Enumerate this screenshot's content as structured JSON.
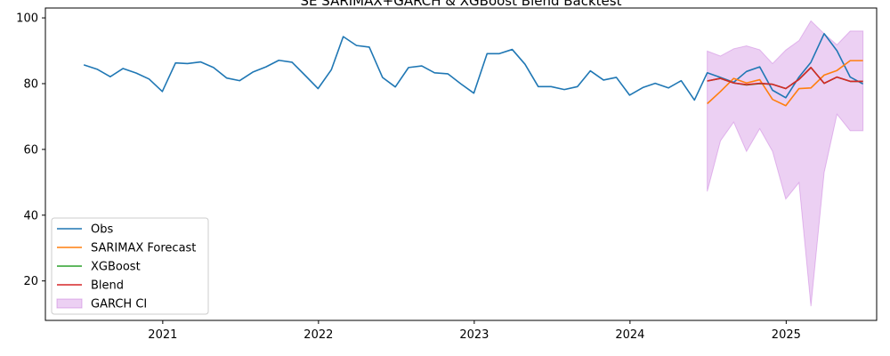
{
  "chart_data": {
    "type": "line",
    "title": "SE SARIMAX+GARCH & XGBoost Blend Backtest",
    "xlabel": "",
    "ylabel": "",
    "xlim": [
      "2020-04-01",
      "2025-08-01"
    ],
    "ylim": [
      8,
      103
    ],
    "grid": false,
    "legend_position": "lower-left",
    "x_ticks": [
      {
        "date": "2021-01-01",
        "label": "2021"
      },
      {
        "date": "2022-01-01",
        "label": "2022"
      },
      {
        "date": "2023-01-01",
        "label": "2023"
      },
      {
        "date": "2024-01-01",
        "label": "2024"
      },
      {
        "date": "2025-01-01",
        "label": "2025"
      }
    ],
    "y_ticks": [
      20,
      40,
      60,
      80,
      100
    ],
    "colors": {
      "obs": "#1f77b4",
      "sarimax": "#ff7f0e",
      "xgboost": "#2ca02c",
      "blend": "#d62728",
      "garch_ci": "#ba55d3"
    },
    "series": [
      {
        "name": "Obs",
        "color": "#1f77b4",
        "x": [
          "2020-06-30",
          "2020-07-31",
          "2020-08-31",
          "2020-09-30",
          "2020-10-31",
          "2020-11-30",
          "2020-12-31",
          "2021-01-31",
          "2021-02-28",
          "2021-03-31",
          "2021-04-30",
          "2021-05-31",
          "2021-06-30",
          "2021-07-31",
          "2021-08-31",
          "2021-09-30",
          "2021-10-31",
          "2021-11-30",
          "2021-12-31",
          "2022-01-31",
          "2022-02-28",
          "2022-03-31",
          "2022-04-30",
          "2022-05-31",
          "2022-06-30",
          "2022-07-31",
          "2022-08-31",
          "2022-09-30",
          "2022-10-31",
          "2022-11-30",
          "2022-12-31",
          "2023-01-31",
          "2023-02-28",
          "2023-03-31",
          "2023-04-30",
          "2023-05-31",
          "2023-06-30",
          "2023-07-31",
          "2023-08-31",
          "2023-09-30",
          "2023-10-31",
          "2023-11-30",
          "2023-12-31",
          "2024-01-31",
          "2024-02-29",
          "2024-03-31",
          "2024-04-30",
          "2024-05-31",
          "2024-06-30",
          "2024-07-31",
          "2024-08-31",
          "2024-09-30",
          "2024-10-31",
          "2024-11-30",
          "2024-12-31",
          "2025-01-31",
          "2025-02-28",
          "2025-03-31",
          "2025-04-30",
          "2025-05-31",
          "2025-06-30"
        ],
        "values": [
          85.7,
          84.4,
          82.1,
          84.6,
          83.2,
          81.4,
          77.6,
          86.3,
          86.1,
          86.6,
          84.9,
          81.7,
          80.9,
          83.5,
          85.1,
          87.1,
          86.5,
          82.6,
          78.5,
          84.2,
          94.3,
          91.6,
          91.1,
          81.9,
          79.0,
          84.9,
          85.4,
          83.3,
          83.0,
          80.0,
          77.1,
          89.1,
          89.1,
          90.4,
          85.9,
          79.1,
          79.1,
          78.2,
          79.1,
          83.9,
          81.1,
          81.9,
          76.5,
          78.8,
          80.1,
          78.7,
          80.9,
          75.0,
          83.3,
          81.9,
          80.4,
          83.7,
          85.1,
          78.0,
          75.7,
          82.0,
          86.5,
          95.2,
          90.0,
          82.0,
          79.9
        ]
      },
      {
        "name": "SARIMAX Forecast",
        "color": "#ff7f0e",
        "x": [
          "2024-06-30",
          "2024-07-31",
          "2024-08-31",
          "2024-09-30",
          "2024-10-31",
          "2024-11-30",
          "2024-12-31",
          "2025-01-31",
          "2025-02-28",
          "2025-03-31",
          "2025-04-30",
          "2025-05-31",
          "2025-06-30"
        ],
        "values": [
          73.9,
          77.6,
          81.6,
          80.2,
          81.2,
          75.2,
          73.3,
          78.5,
          78.7,
          82.6,
          84.0,
          87.0,
          87.0
        ]
      },
      {
        "name": "XGBoost",
        "color": "#2ca02c",
        "x": [
          "2024-06-30",
          "2024-07-31",
          "2024-08-31",
          "2024-09-30",
          "2024-10-31",
          "2024-11-30",
          "2024-12-31",
          "2025-01-31",
          "2025-02-28",
          "2025-03-31",
          "2025-04-30",
          "2025-05-31",
          "2025-06-30"
        ],
        "values": [
          80.8,
          81.6,
          80.2,
          79.6,
          80.0,
          79.8,
          78.5,
          81.3,
          84.9,
          80.1,
          82.0,
          80.7,
          80.7
        ]
      },
      {
        "name": "Blend",
        "color": "#d62728",
        "x": [
          "2024-06-30",
          "2024-07-31",
          "2024-08-31",
          "2024-09-30",
          "2024-10-31",
          "2024-11-30",
          "2024-12-31",
          "2025-01-31",
          "2025-02-28",
          "2025-03-31",
          "2025-04-30",
          "2025-05-31",
          "2025-06-30"
        ],
        "values": [
          80.8,
          81.6,
          80.2,
          79.7,
          80.1,
          79.8,
          78.5,
          81.3,
          84.9,
          80.1,
          82.0,
          80.7,
          80.7
        ]
      }
    ],
    "garch_ci": {
      "name": "GARCH CI",
      "color": "#ba55d3",
      "x": [
        "2024-06-30",
        "2024-07-31",
        "2024-08-31",
        "2024-09-30",
        "2024-10-31",
        "2024-11-30",
        "2024-12-31",
        "2025-01-31",
        "2025-02-28",
        "2025-03-31",
        "2025-04-30",
        "2025-05-31",
        "2025-06-30"
      ],
      "lower": [
        47.2,
        62.6,
        68.3,
        59.4,
        66.3,
        59.4,
        44.9,
        49.9,
        12.3,
        53.0,
        70.7,
        65.7,
        65.7
      ],
      "upper": [
        89.9,
        88.4,
        90.6,
        91.5,
        90.3,
        86.1,
        90.2,
        93.1,
        99.1,
        95.2,
        91.8,
        96.0,
        96.0
      ]
    }
  }
}
